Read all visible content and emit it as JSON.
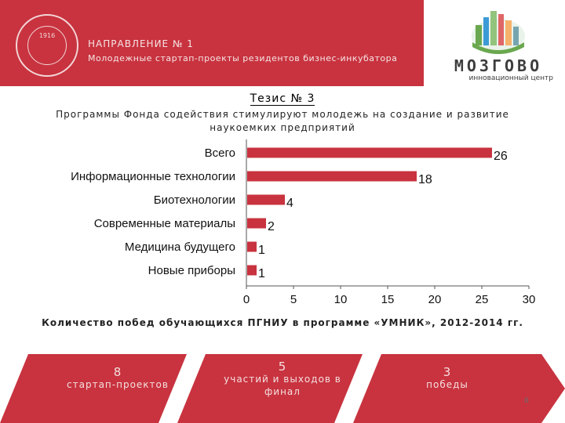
{
  "header": {
    "seal_year": "1916",
    "line1": "НАПРАВЛЕНИЕ № 1",
    "line2": "Молодежные стартап-проекты резидентов бизнес-инкубатора"
  },
  "logo": {
    "name": "МОЗГОВО",
    "subtitle": "инновационный центр",
    "colors": [
      "#6aa84f",
      "#3c9bd6",
      "#e06666",
      "#93c47d",
      "#f6b26b",
      "#76a5af"
    ]
  },
  "thesis_title": "Тезис № 3",
  "subtitle": "Программы Фонда содействия стимулируют молодежь на создание и развитие наукоемких предприятий",
  "chart_data": {
    "type": "bar",
    "orientation": "horizontal",
    "categories": [
      "Всего",
      "Информационные технологии",
      "Биотехнологии",
      "Современные материалы",
      "Медицина будущего",
      "Новые приборы"
    ],
    "values": [
      26,
      18,
      4,
      2,
      1,
      1
    ],
    "xlim": [
      0,
      30
    ],
    "xticks": [
      "0",
      "5",
      "10",
      "15",
      "20",
      "25",
      "30"
    ],
    "bar_color": "#c8333f",
    "grid": false
  },
  "caption": "Количество побед обучающихся ПГНИУ в программе «УМНИК», 2012-2014 гг.",
  "banners": [
    {
      "number": "8",
      "label": "стартап-проектов"
    },
    {
      "number": "5",
      "label": "участий и выходов в финал"
    },
    {
      "number": "3",
      "label": "победы"
    }
  ],
  "banner_color": "#c8333f",
  "page_number": "8"
}
